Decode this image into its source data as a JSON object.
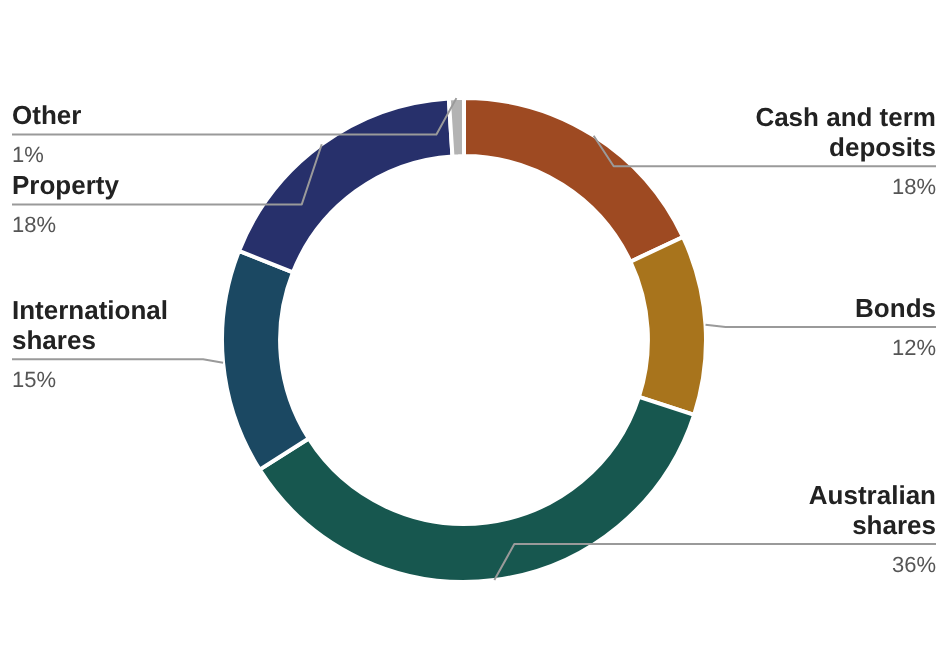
{
  "chart_data": {
    "type": "donut",
    "categories": [
      "Cash and term deposits",
      "Bonds",
      "Australian shares",
      "International shares",
      "Property",
      "Other"
    ],
    "values": [
      18,
      12,
      36,
      15,
      18,
      1
    ],
    "colors": [
      "#9e4a22",
      "#a8741c",
      "#17574f",
      "#1b4862",
      "#27306b",
      "#b3b3b3"
    ],
    "value_labels": [
      "18%",
      "12%",
      "36%",
      "15%",
      "18%",
      "1%"
    ],
    "legend": false
  }
}
